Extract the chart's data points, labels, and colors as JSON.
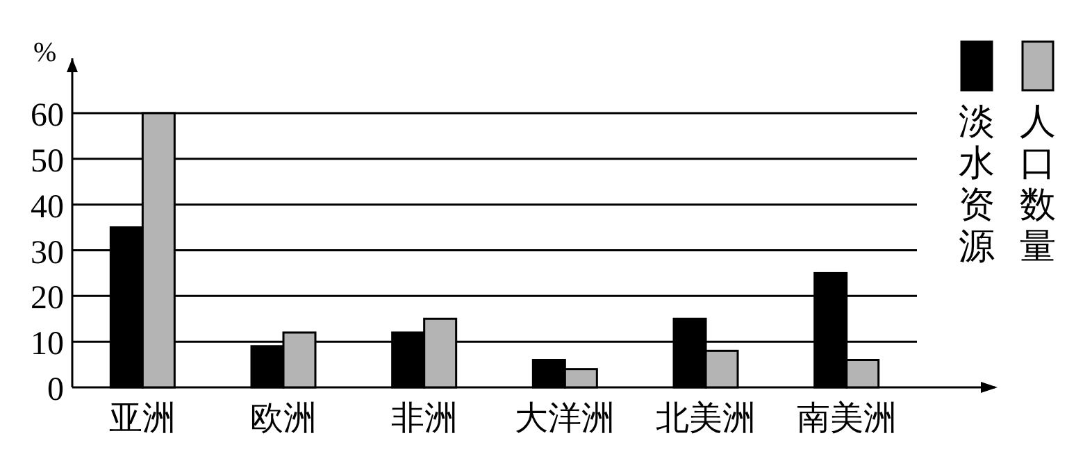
{
  "chart_data": {
    "type": "bar",
    "ylabel": "%",
    "categories": [
      "亚洲",
      "欧洲",
      "非洲",
      "大洋洲",
      "北美洲",
      "南美洲"
    ],
    "series": [
      {
        "name": "淡水资源",
        "color": "#000000",
        "values": [
          35,
          9,
          12,
          6,
          15,
          25
        ]
      },
      {
        "name": "人口数量",
        "color": "#b4b4b4",
        "values": [
          60,
          12,
          15,
          4,
          8,
          6
        ]
      }
    ],
    "ylim": [
      0,
      72
    ],
    "yticks": [
      0,
      10,
      20,
      30,
      40,
      50,
      60
    ],
    "grid": "y",
    "legend": "top right"
  }
}
